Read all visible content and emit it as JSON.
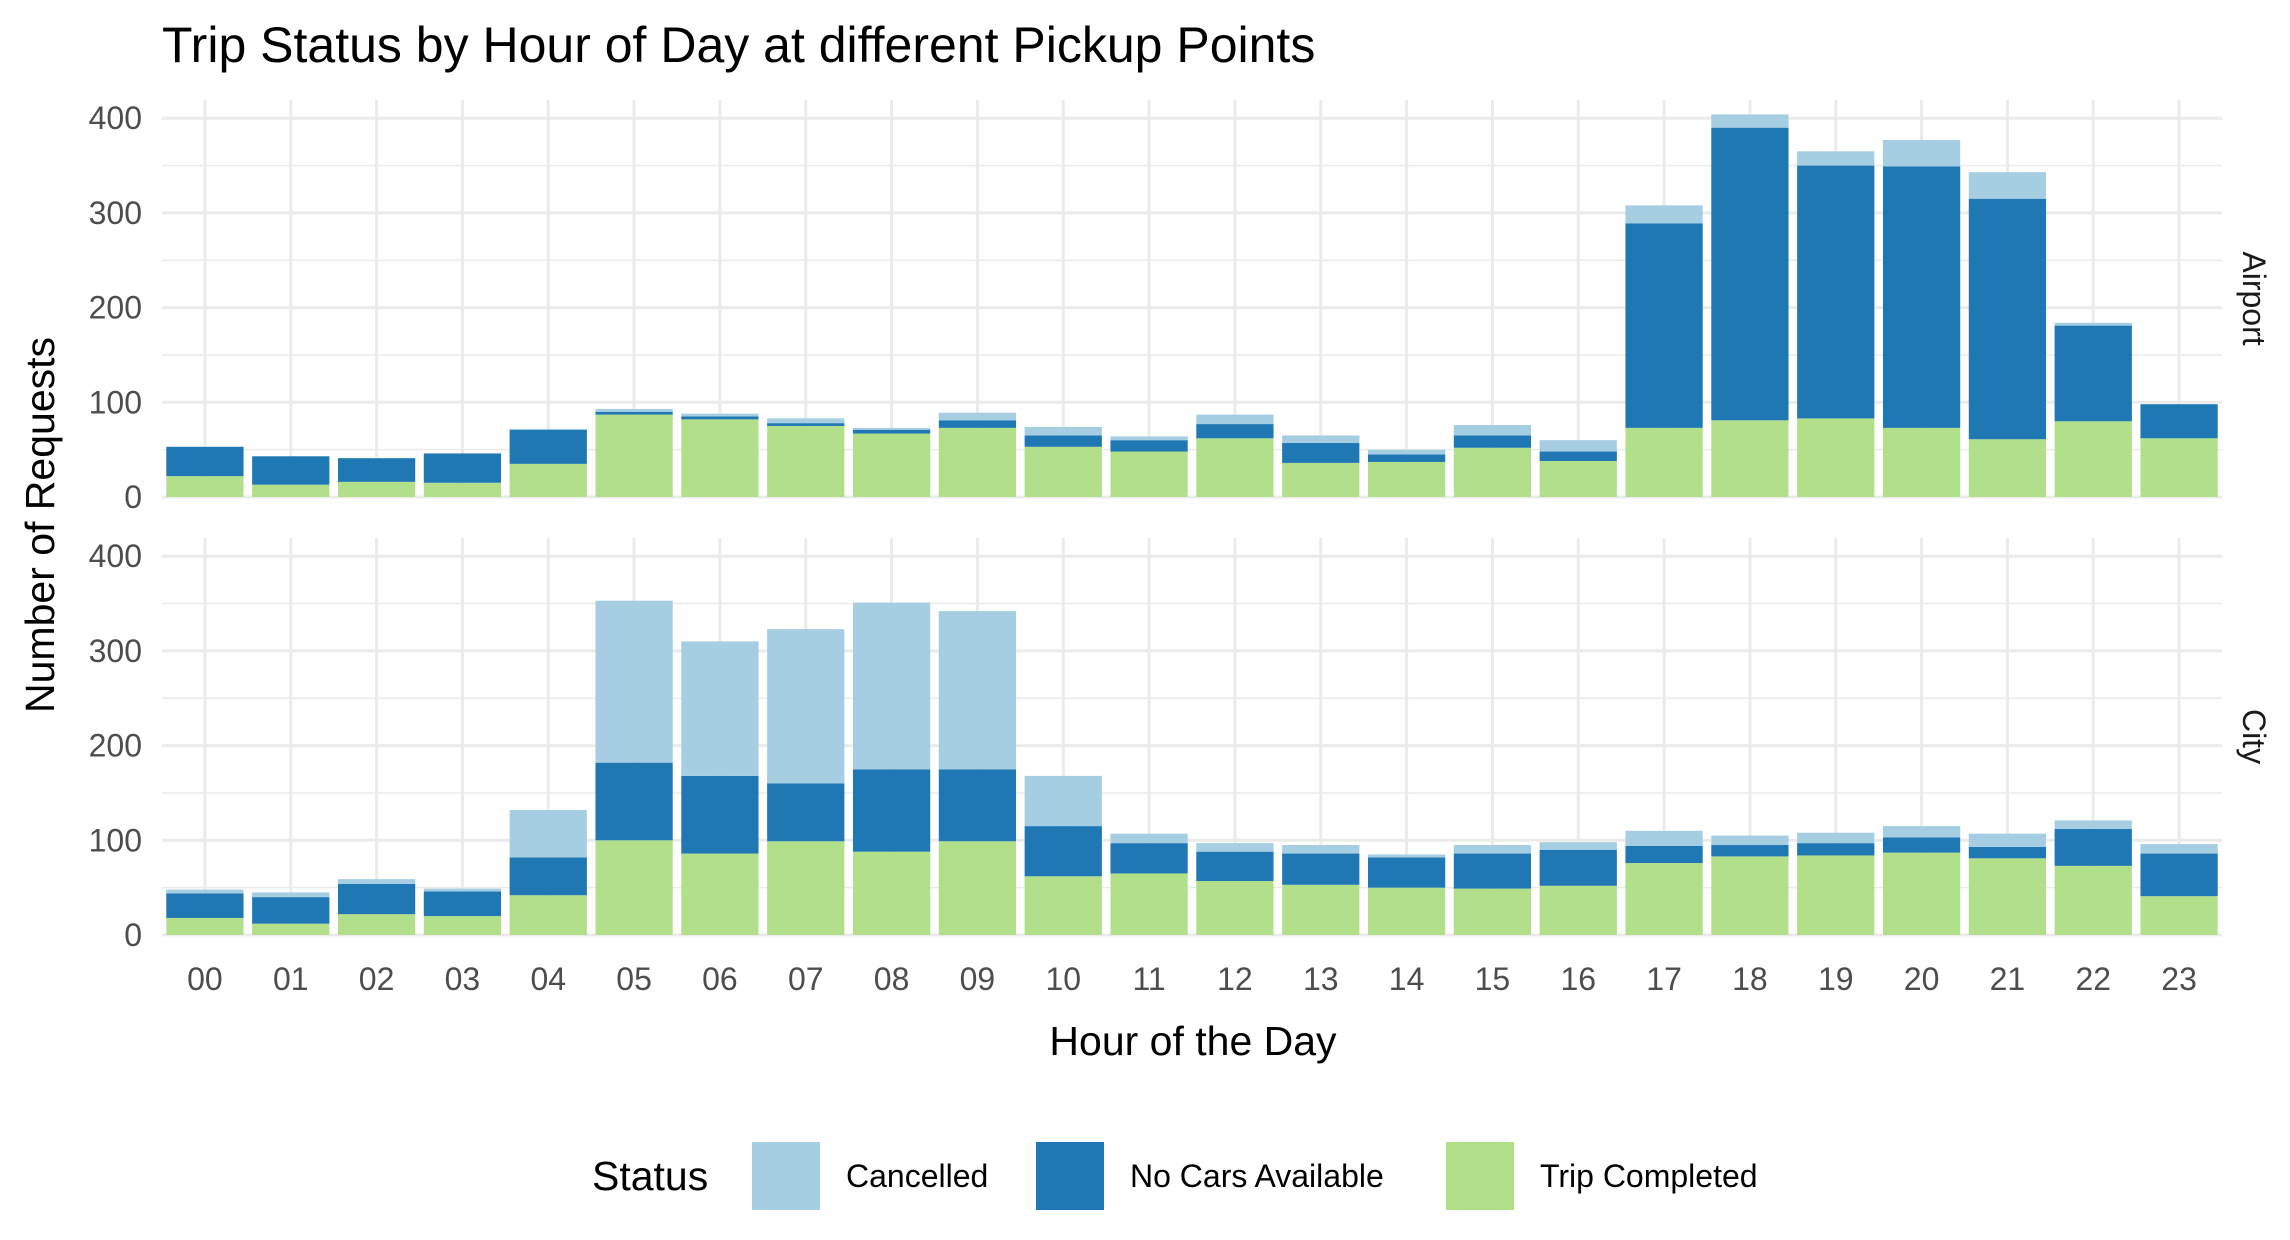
{
  "chart_data": {
    "type": "bar",
    "stacked": true,
    "title": "Trip Status by Hour of Day at different Pickup Points",
    "xlabel": "Hour of the Day",
    "ylabel": "Number of Requests",
    "ylim": [
      0,
      420
    ],
    "yticks": [
      0,
      100,
      200,
      300,
      400
    ],
    "grid": true,
    "legend_position": "bottom",
    "legend_title": "Status",
    "categories": [
      "00",
      "01",
      "02",
      "03",
      "04",
      "05",
      "06",
      "07",
      "08",
      "09",
      "10",
      "11",
      "12",
      "13",
      "14",
      "15",
      "16",
      "17",
      "18",
      "19",
      "20",
      "21",
      "22",
      "23"
    ],
    "colors": {
      "Cancelled": "#a6cee3",
      "No Cars Available": "#1f78b4",
      "Trip Completed": "#b2df8a"
    },
    "panels": [
      {
        "name": "Airport",
        "series": [
          {
            "name": "Trip Completed",
            "values": [
              22,
              13,
              16,
              15,
              35,
              87,
              82,
              75,
              67,
              73,
              53,
              48,
              62,
              36,
              37,
              52,
              38,
              73,
              81,
              83,
              73,
              61,
              80,
              62
            ]
          },
          {
            "name": "No Cars Available",
            "values": [
              31,
              30,
              25,
              31,
              36,
              3,
              3,
              3,
              4,
              8,
              12,
              12,
              15,
              21,
              8,
              13,
              10,
              216,
              309,
              267,
              276,
              254,
              101,
              36
            ]
          },
          {
            "name": "Cancelled",
            "values": [
              0,
              0,
              0,
              0,
              1,
              3,
              3,
              5,
              2,
              8,
              9,
              4,
              10,
              8,
              5,
              11,
              12,
              19,
              14,
              15,
              28,
              28,
              3,
              0
            ]
          }
        ]
      },
      {
        "name": "City",
        "series": [
          {
            "name": "Trip Completed",
            "values": [
              18,
              12,
              22,
              20,
              42,
              100,
              86,
              99,
              88,
              99,
              62,
              65,
              57,
              53,
              50,
              49,
              52,
              76,
              83,
              84,
              87,
              81,
              73,
              41
            ]
          },
          {
            "name": "No Cars Available",
            "values": [
              26,
              28,
              32,
              26,
              40,
              82,
              82,
              61,
              87,
              76,
              53,
              32,
              31,
              33,
              32,
              37,
              38,
              18,
              12,
              13,
              16,
              12,
              39,
              45
            ]
          },
          {
            "name": "Cancelled",
            "values": [
              4,
              5,
              5,
              3,
              50,
              171,
              142,
              163,
              176,
              167,
              53,
              10,
              9,
              9,
              3,
              9,
              8,
              16,
              10,
              11,
              12,
              14,
              9,
              10
            ]
          }
        ]
      }
    ]
  }
}
